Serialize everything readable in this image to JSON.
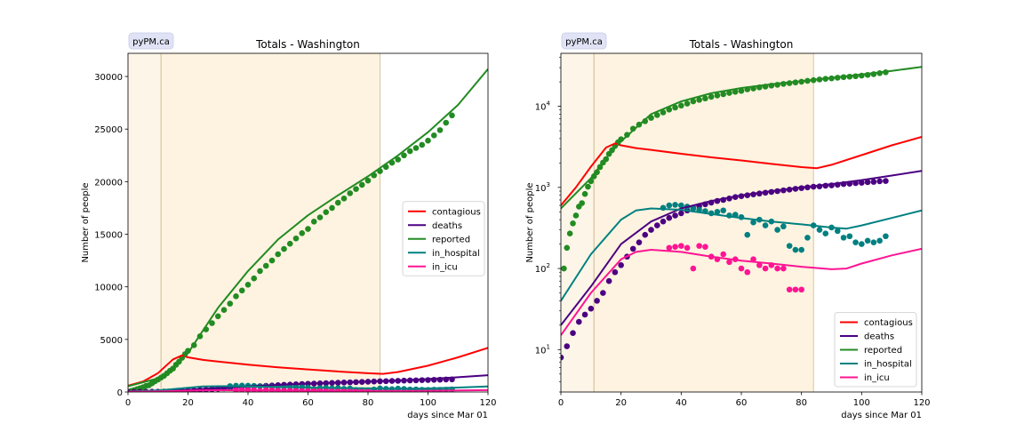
{
  "chart_data": [
    {
      "type": "line",
      "title": "Totals - Washington",
      "badge": "pyPM.ca",
      "xlabel": "days since Mar 01",
      "ylabel": "Number of people",
      "yscale": "linear",
      "xlim": [
        0,
        120
      ],
      "ylim": [
        0,
        32200
      ],
      "xticks": [
        0,
        20,
        40,
        60,
        80,
        100,
        120
      ],
      "yticks": [
        0,
        5000,
        10000,
        15000,
        20000,
        25000,
        30000
      ],
      "legend_position": "center-right",
      "shaded_periods": [
        {
          "from": 0,
          "to": 11,
          "color": "#fdf6e8"
        },
        {
          "from": 11,
          "to": 84,
          "color": "#fdf3e0"
        }
      ],
      "series": [
        {
          "name": "contagious",
          "color": "#ff0000",
          "x": [
            0,
            5,
            10,
            15,
            18,
            20,
            25,
            30,
            40,
            50,
            60,
            70,
            80,
            85,
            90,
            100,
            110,
            120
          ],
          "y": [
            600,
            1000,
            1800,
            3100,
            3480,
            3300,
            3050,
            2900,
            2600,
            2350,
            2150,
            1950,
            1780,
            1720,
            1900,
            2500,
            3300,
            4200
          ]
        },
        {
          "name": "deaths",
          "color": "#4b0082",
          "x": [
            0,
            10,
            20,
            30,
            40,
            50,
            60,
            70,
            80,
            90,
            100,
            110,
            120
          ],
          "y": [
            20,
            60,
            200,
            380,
            550,
            680,
            800,
            900,
            1000,
            1100,
            1230,
            1400,
            1600
          ]
        },
        {
          "name": "reported",
          "color": "#228b22",
          "x": [
            0,
            10,
            15,
            20,
            30,
            40,
            50,
            60,
            70,
            80,
            90,
            100,
            110,
            120
          ],
          "y": [
            550,
            1300,
            2300,
            3700,
            8000,
            11500,
            14500,
            16800,
            18700,
            20500,
            22500,
            24700,
            27300,
            30700
          ]
        },
        {
          "name": "in_hospital",
          "color": "#008080",
          "x": [
            0,
            10,
            20,
            25,
            30,
            40,
            50,
            60,
            70,
            80,
            90,
            95,
            100,
            110,
            120
          ],
          "y": [
            40,
            150,
            400,
            520,
            550,
            530,
            470,
            420,
            380,
            350,
            320,
            310,
            340,
            420,
            520
          ]
        },
        {
          "name": "in_icu",
          "color": "#ff1493",
          "x": [
            0,
            10,
            20,
            25,
            30,
            40,
            50,
            60,
            70,
            80,
            90,
            95,
            100,
            110,
            120
          ],
          "y": [
            15,
            50,
            130,
            160,
            170,
            160,
            140,
            125,
            115,
            105,
            98,
            100,
            115,
            145,
            175
          ]
        }
      ],
      "observed": [
        {
          "name": "reported",
          "color": "#228b22",
          "x": [
            1,
            2,
            3,
            4,
            5,
            6,
            7,
            8,
            9,
            10,
            11,
            12,
            13,
            14,
            15,
            16,
            17,
            18,
            19,
            20,
            22,
            24,
            26,
            28,
            30,
            32,
            34,
            36,
            38,
            40,
            42,
            44,
            46,
            48,
            50,
            52,
            54,
            56,
            58,
            60,
            62,
            64,
            66,
            68,
            70,
            72,
            74,
            76,
            78,
            80,
            82,
            84,
            86,
            88,
            90,
            92,
            94,
            96,
            98,
            100,
            102,
            104,
            106,
            108
          ],
          "y": [
            100,
            180,
            270,
            360,
            450,
            580,
            640,
            830,
            1020,
            1190,
            1370,
            1540,
            1780,
            2020,
            2230,
            2590,
            2880,
            3250,
            3600,
            3920,
            4450,
            5300,
            5950,
            6550,
            7200,
            7800,
            8400,
            9100,
            9650,
            10200,
            10800,
            11500,
            12000,
            12500,
            13100,
            13600,
            14100,
            14600,
            15100,
            15500,
            16200,
            16600,
            17100,
            17500,
            18000,
            18400,
            18900,
            19300,
            19700,
            20100,
            20600,
            21000,
            21400,
            21800,
            22100,
            22500,
            22900,
            23200,
            23500,
            23900,
            24400,
            24900,
            25600,
            26300
          ]
        },
        {
          "name": "deaths",
          "color": "#4b0082",
          "x": [
            0,
            2,
            4,
            6,
            8,
            10,
            12,
            14,
            16,
            18,
            20,
            22,
            24,
            26,
            28,
            30,
            32,
            34,
            36,
            38,
            40,
            42,
            44,
            46,
            48,
            50,
            52,
            54,
            56,
            58,
            60,
            62,
            64,
            66,
            68,
            70,
            72,
            74,
            76,
            78,
            80,
            82,
            84,
            86,
            88,
            90,
            92,
            94,
            96,
            98,
            100,
            102,
            104,
            106,
            108
          ],
          "y": [
            8,
            11,
            16,
            22,
            27,
            32,
            40,
            50,
            70,
            90,
            110,
            140,
            175,
            210,
            260,
            300,
            340,
            380,
            420,
            450,
            480,
            520,
            560,
            590,
            620,
            650,
            680,
            700,
            730,
            760,
            780,
            800,
            820,
            840,
            860,
            880,
            900,
            920,
            940,
            960,
            980,
            1000,
            1020,
            1030,
            1050,
            1060,
            1080,
            1100,
            1110,
            1130,
            1140,
            1160,
            1170,
            1190,
            1200
          ]
        },
        {
          "name": "in_hospital",
          "color": "#008080",
          "x": [
            34,
            36,
            38,
            40,
            42,
            44,
            46,
            48,
            50,
            52,
            54,
            56,
            58,
            60,
            62,
            64,
            66,
            68,
            70,
            72,
            74,
            76,
            78,
            80,
            82,
            84,
            86,
            88,
            90,
            92,
            94,
            96,
            98,
            100,
            102,
            104,
            106,
            108
          ],
          "y": [
            560,
            600,
            610,
            600,
            580,
            550,
            530,
            510,
            480,
            500,
            520,
            450,
            460,
            430,
            260,
            370,
            400,
            340,
            380,
            300,
            330,
            190,
            170,
            170,
            240,
            340,
            300,
            270,
            320,
            290,
            240,
            250,
            210,
            200,
            220,
            210,
            220,
            250
          ]
        },
        {
          "name": "in_icu",
          "color": "#ff1493",
          "x": [
            36,
            38,
            40,
            42,
            44,
            46,
            48,
            50,
            52,
            54,
            56,
            58,
            60,
            62,
            64,
            66,
            68,
            70,
            72,
            74,
            76,
            78,
            80
          ],
          "y": [
            180,
            185,
            190,
            180,
            100,
            190,
            185,
            140,
            130,
            150,
            120,
            130,
            100,
            90,
            130,
            110,
            100,
            110,
            100,
            100,
            55,
            55,
            55
          ]
        }
      ]
    },
    {
      "type": "line",
      "title": "Totals - Washington",
      "badge": "pyPM.ca",
      "xlabel": "days since Mar 01",
      "ylabel": "Number of people",
      "yscale": "log",
      "xlim": [
        0,
        120
      ],
      "ylim": [
        3,
        45000
      ],
      "xticks": [
        0,
        20,
        40,
        60,
        80,
        100,
        120
      ],
      "yticks": [
        10,
        100,
        1000,
        10000
      ],
      "yticklabels_base": "10",
      "yticklabels_exp": [
        "1",
        "2",
        "3",
        "4"
      ],
      "legend_position": "lower-right",
      "shaded_periods": [
        {
          "from": 0,
          "to": 11,
          "color": "#fdf6e8"
        },
        {
          "from": 11,
          "to": 84,
          "color": "#fdf3e0"
        }
      ]
    }
  ]
}
